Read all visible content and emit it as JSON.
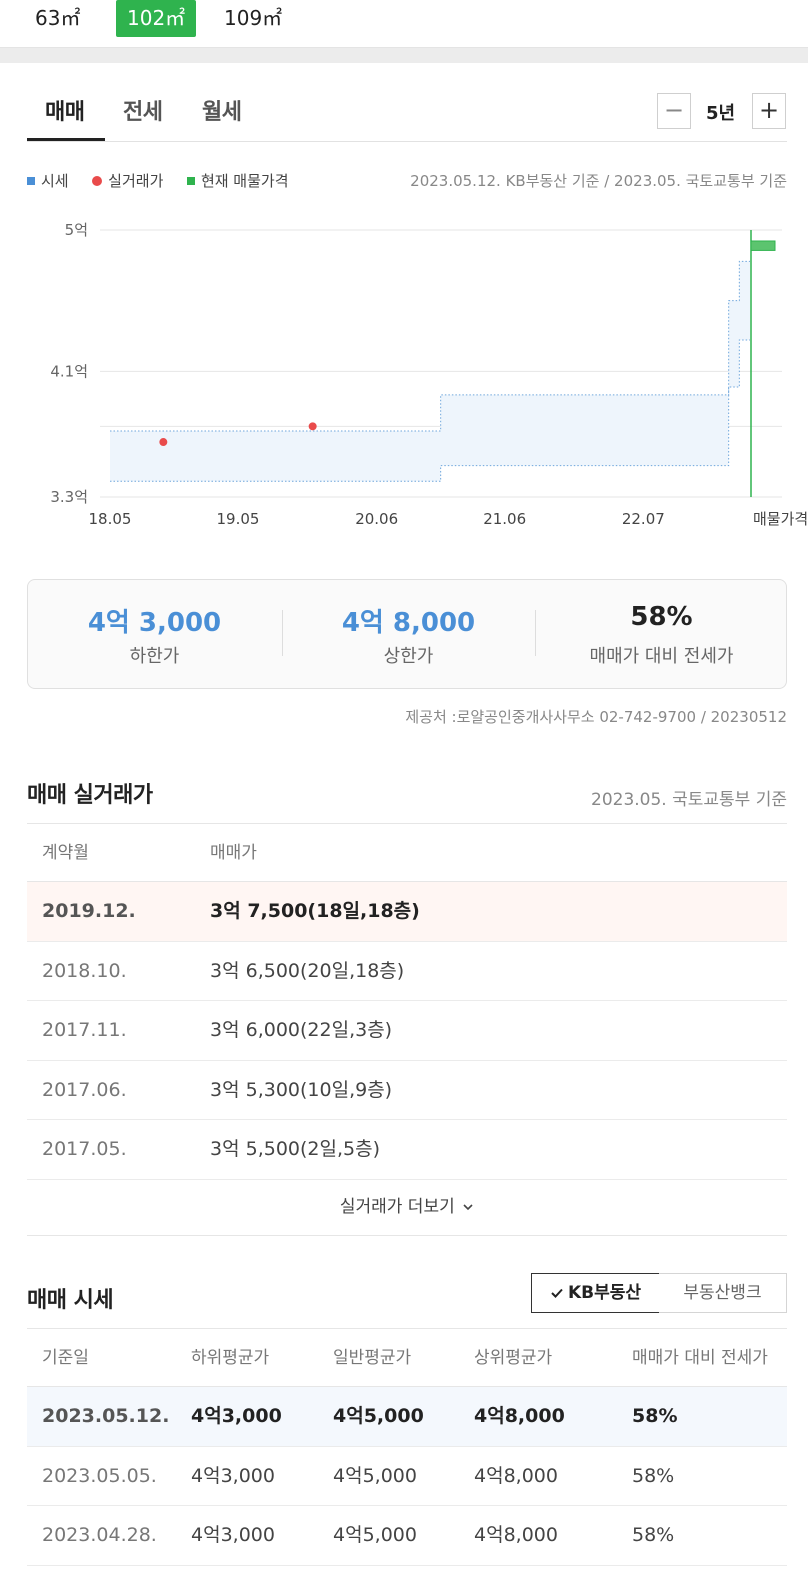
{
  "sizes": [
    {
      "label": "63㎡",
      "selected": false
    },
    {
      "label": "102㎡",
      "selected": true
    },
    {
      "label": "109㎡",
      "selected": false
    }
  ],
  "tabs": [
    "매매",
    "전세",
    "월세"
  ],
  "period": {
    "minus": "−",
    "value": "5년",
    "plus": "+"
  },
  "legend": [
    {
      "label": "시세",
      "color": "#4a8fd6"
    },
    {
      "label": "실거래가",
      "color": "#e94b4b"
    },
    {
      "label": "현재 매물가격",
      "color": "#2fb34e"
    }
  ],
  "basis_text": "2023.05.12. KB부동산 기준 / 2023.05. 국토교통부 기준",
  "chart_data": {
    "type": "area",
    "y_tick_labels": [
      "5억",
      "4.1억",
      "3.3억"
    ],
    "y_ticks": [
      5.0,
      4.1,
      3.3
    ],
    "ylim": [
      3.3,
      5.0
    ],
    "x_tick_labels": [
      "18.05",
      "19.05",
      "20.06",
      "21.06",
      "22.07",
      "매물가격"
    ],
    "x_ticks": [
      "2018-05",
      "2019-05",
      "2020-06",
      "2021-06",
      "2022-07"
    ],
    "grid": true,
    "series": [
      {
        "name": "시세",
        "kind": "band",
        "x": [
          "2018-05",
          "2020-11",
          "2020-12",
          "2023-02",
          "2023-03",
          "2023-04",
          "2023-05"
        ],
        "lower": [
          3.4,
          3.4,
          3.5,
          3.5,
          4.0,
          4.3,
          4.3
        ],
        "upper": [
          3.72,
          3.72,
          3.95,
          3.95,
          4.55,
          4.8,
          4.8
        ]
      },
      {
        "name": "실거래가",
        "kind": "points",
        "x": [
          "2018-10",
          "2019-12"
        ],
        "values": [
          3.65,
          3.75
        ]
      },
      {
        "name": "현재 매물가격",
        "kind": "range",
        "x": [
          "매물가격"
        ],
        "low": [
          4.87
        ],
        "high": [
          4.93
        ]
      }
    ]
  },
  "stats": [
    {
      "value": "4억 3,000",
      "label": "하한가"
    },
    {
      "value": "4억 8,000",
      "label": "상한가"
    },
    {
      "value": "58%",
      "label": "매매가 대비 전세가"
    }
  ],
  "provider": "제공처 :로얄공인중개사사무소 02-742-9700 / 20230512",
  "trades": {
    "title": "매매 실거래가",
    "basis": "2023.05. 국토교통부 기준",
    "headers": [
      "계약월",
      "매매가"
    ],
    "rows": [
      {
        "month": "2019.12.",
        "price": "3억 7,500(18일,18층)"
      },
      {
        "month": "2018.10.",
        "price": "3억 6,500(20일,18층)"
      },
      {
        "month": "2017.11.",
        "price": "3억 6,000(22일,3층)"
      },
      {
        "month": "2017.06.",
        "price": "3억 5,300(10일,9층)"
      },
      {
        "month": "2017.05.",
        "price": "3억 5,500(2일,5층)"
      }
    ],
    "more": "실거래가 더보기"
  },
  "market": {
    "title": "매매 시세",
    "sources": [
      "KB부동산",
      "부동산뱅크"
    ],
    "headers": [
      "기준일",
      "하위평균가",
      "일반평균가",
      "상위평균가",
      "매매가 대비 전세가"
    ],
    "rows": [
      [
        "2023.05.12.",
        "4억3,000",
        "4억5,000",
        "4억8,000",
        "58%"
      ],
      [
        "2023.05.05.",
        "4억3,000",
        "4억5,000",
        "4억8,000",
        "58%"
      ],
      [
        "2023.04.28.",
        "4억3,000",
        "4억5,000",
        "4억8,000",
        "58%"
      ]
    ]
  }
}
